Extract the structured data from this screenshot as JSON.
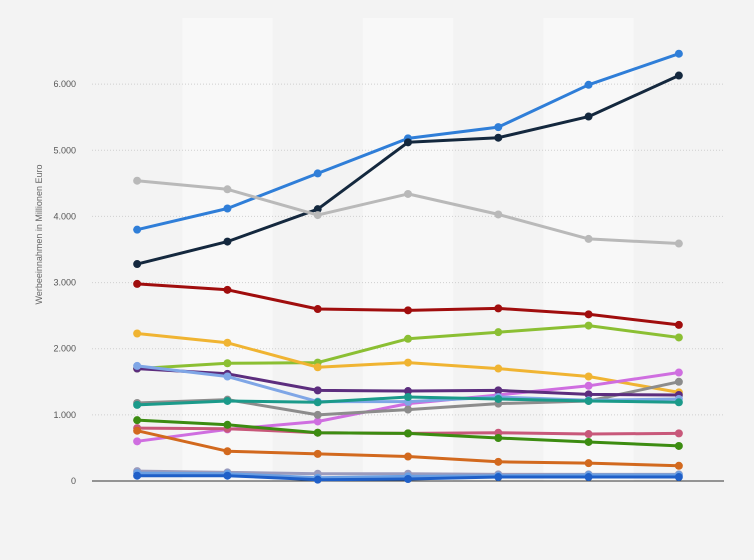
{
  "chart_data": {
    "type": "line",
    "title": "",
    "xlabel": "",
    "ylabel": "Werbeeinnahmen in Millionen Euro",
    "x": [
      1,
      2,
      3,
      4,
      5,
      6,
      7
    ],
    "ylim": [
      0,
      7000
    ],
    "yticks": [
      0,
      1000,
      2000,
      3000,
      4000,
      5000,
      6000
    ],
    "ytick_labels": [
      "0",
      "1.000",
      "2.000",
      "3.000",
      "4.000",
      "5.000",
      "6.000"
    ],
    "grid": true,
    "legend": "none",
    "series": [
      {
        "color": "#2f7ed8",
        "values": [
          3800,
          4120,
          4650,
          5180,
          5350,
          5990,
          6460
        ]
      },
      {
        "color": "#14283e",
        "values": [
          3280,
          3620,
          4110,
          5120,
          5190,
          5510,
          6130
        ]
      },
      {
        "color": "#b9b9b9",
        "values": [
          4540,
          4410,
          4020,
          4340,
          4030,
          3660,
          3590
        ]
      },
      {
        "color": "#a00d0d",
        "values": [
          2980,
          2890,
          2600,
          2580,
          2610,
          2520,
          2360
        ]
      },
      {
        "color": "#8bbf33",
        "values": [
          1700,
          1780,
          1790,
          2150,
          2250,
          2350,
          2170
        ]
      },
      {
        "color": "#f0b432",
        "values": [
          2230,
          2090,
          1720,
          1790,
          1700,
          1580,
          1340
        ]
      },
      {
        "color": "#cf6ee0",
        "values": [
          600,
          780,
          900,
          1170,
          1300,
          1440,
          1640
        ]
      },
      {
        "color": "#8c8c8c",
        "values": [
          1180,
          1230,
          1000,
          1080,
          1170,
          1210,
          1500
        ]
      },
      {
        "color": "#5c2d7e",
        "values": [
          1700,
          1620,
          1370,
          1360,
          1370,
          1310,
          1300
        ]
      },
      {
        "color": "#7fa6e6",
        "values": [
          1740,
          1580,
          1200,
          1200,
          1270,
          1220,
          1240
        ]
      },
      {
        "color": "#1b9a8a",
        "values": [
          1150,
          1210,
          1190,
          1270,
          1240,
          1210,
          1190
        ]
      },
      {
        "color": "#c8587a",
        "values": [
          800,
          790,
          730,
          720,
          730,
          710,
          720
        ]
      },
      {
        "color": "#3c8c11",
        "values": [
          920,
          850,
          730,
          720,
          650,
          590,
          530
        ]
      },
      {
        "color": "#d2691e",
        "values": [
          760,
          450,
          410,
          370,
          290,
          270,
          230
        ]
      },
      {
        "color": "#9b9bbd",
        "values": [
          150,
          130,
          110,
          110,
          100,
          100,
          100
        ]
      },
      {
        "color": "#6a9fe3",
        "values": [
          120,
          110,
          50,
          70,
          80,
          90,
          90
        ]
      },
      {
        "color": "#1f5fc8",
        "values": [
          80,
          80,
          20,
          30,
          60,
          60,
          60
        ]
      }
    ]
  }
}
